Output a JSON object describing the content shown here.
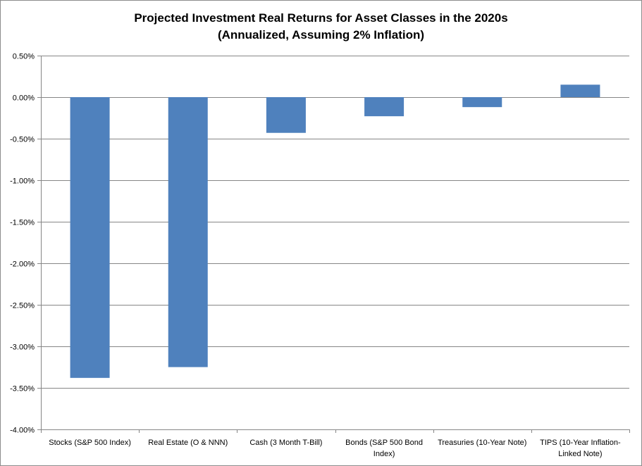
{
  "chart_data": {
    "type": "bar",
    "title": "Projected Investment Real Returns for Asset Classes in the 2020s",
    "subtitle": "(Annualized, Assuming 2% Inflation)",
    "xlabel": "",
    "ylabel": "",
    "categories": [
      "Stocks (S&P 500 Index)",
      "Real Estate  (O & NNN)",
      "Cash (3 Month T-Bill)",
      "Bonds (S&P 500 Bond Index)",
      "Treasuries (10-Year Note)",
      "TIPS (10-Year Inflation-Linked Note)"
    ],
    "category_lines": [
      [
        "Stocks (S&P 500 Index)"
      ],
      [
        "Real Estate  (O & NNN)"
      ],
      [
        "Cash (3 Month T-Bill)"
      ],
      [
        "Bonds (S&P 500 Bond",
        "Index)"
      ],
      [
        "Treasuries (10-Year Note)"
      ],
      [
        "TIPS (10-Year Inflation-",
        "Linked Note)"
      ]
    ],
    "values": [
      -3.38,
      -3.25,
      -0.43,
      -0.23,
      -0.12,
      0.15
    ],
    "ylim": [
      -4.0,
      0.5
    ],
    "yticks": [
      0.5,
      0.0,
      -0.5,
      -1.0,
      -1.5,
      -2.0,
      -2.5,
      -3.0,
      -3.5,
      -4.0
    ],
    "ytick_labels": [
      "0.50%",
      "0.00%",
      "-0.50%",
      "-1.00%",
      "-1.50%",
      "-2.00%",
      "-2.50%",
      "-3.00%",
      "-3.50%",
      "-4.00%"
    ],
    "grid": true,
    "legend": "none",
    "colors": {
      "bar": "#4f81bd",
      "grid": "#868686",
      "axis": "#868686"
    }
  }
}
